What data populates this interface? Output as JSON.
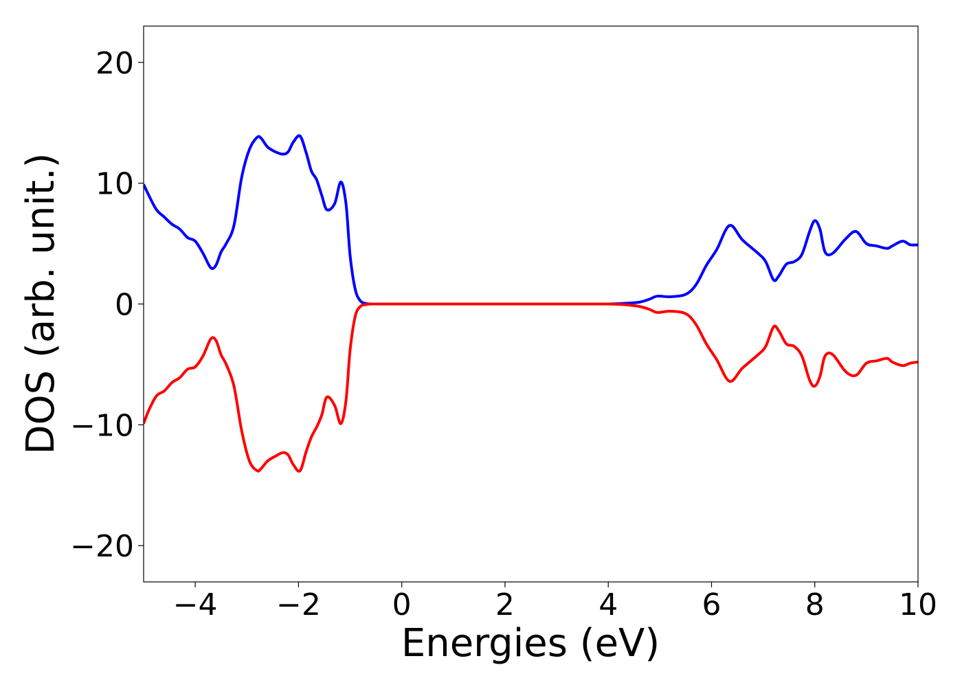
{
  "chart_data": {
    "type": "line",
    "title": "",
    "xlabel": "Energies (eV)",
    "ylabel": "DOS (arb. unit.)",
    "xlim": [
      -5,
      10
    ],
    "ylim": [
      -23,
      23
    ],
    "xticks": [
      -4,
      -2,
      0,
      2,
      4,
      6,
      8,
      10
    ],
    "yticks": [
      -20,
      -10,
      0,
      10,
      20
    ],
    "xtick_labels": [
      "−4",
      "−2",
      "0",
      "2",
      "4",
      "6",
      "8",
      "10"
    ],
    "ytick_labels": [
      "−20",
      "−10",
      "0",
      "10",
      "20"
    ],
    "grid": false,
    "legend": false,
    "series": [
      {
        "color": "#0000ff",
        "x": [
          -5.0,
          -4.9,
          -4.75,
          -4.6,
          -4.45,
          -4.3,
          -4.15,
          -4.0,
          -3.85,
          -3.7,
          -3.6,
          -3.5,
          -3.4,
          -3.25,
          -3.1,
          -2.95,
          -2.8,
          -2.72,
          -2.6,
          -2.45,
          -2.3,
          -2.2,
          -2.1,
          -1.97,
          -1.85,
          -1.75,
          -1.65,
          -1.55,
          -1.45,
          -1.3,
          -1.18,
          -1.08,
          -1.0,
          -0.9,
          -0.8,
          -0.7,
          -0.6,
          -0.5,
          0.0,
          2.0,
          3.5,
          4.0,
          4.3,
          4.6,
          4.8,
          4.95,
          5.2,
          5.5,
          5.7,
          5.9,
          6.1,
          6.35,
          6.6,
          6.9,
          7.05,
          7.2,
          7.3,
          7.45,
          7.6,
          7.75,
          7.9,
          8.0,
          8.1,
          8.2,
          8.35,
          8.6,
          8.8,
          9.0,
          9.2,
          9.4,
          9.5,
          9.7,
          9.85,
          10.0
        ],
        "y": [
          9.9,
          9.0,
          7.8,
          7.2,
          6.6,
          6.2,
          5.5,
          5.2,
          4.2,
          3.0,
          3.2,
          4.3,
          5.0,
          6.5,
          10.5,
          12.8,
          13.8,
          13.7,
          13.0,
          12.6,
          12.4,
          12.6,
          13.4,
          13.9,
          12.5,
          11.0,
          10.3,
          9.0,
          7.8,
          8.3,
          10.1,
          8.3,
          4.0,
          1.2,
          0.25,
          0.05,
          0.0,
          0.0,
          0.0,
          0.0,
          0.0,
          0.0,
          0.05,
          0.15,
          0.4,
          0.65,
          0.6,
          0.8,
          1.6,
          3.2,
          4.5,
          6.5,
          5.3,
          4.2,
          3.5,
          2.0,
          2.3,
          3.3,
          3.5,
          4.1,
          6.0,
          6.9,
          6.2,
          4.3,
          4.2,
          5.4,
          6.0,
          5.0,
          4.8,
          4.6,
          4.8,
          5.2,
          4.9,
          4.9
        ]
      },
      {
        "color": "#ff0000",
        "x": [
          -5.0,
          -4.9,
          -4.75,
          -4.6,
          -4.45,
          -4.3,
          -4.15,
          -4.0,
          -3.85,
          -3.7,
          -3.6,
          -3.5,
          -3.4,
          -3.25,
          -3.1,
          -2.95,
          -2.8,
          -2.72,
          -2.6,
          -2.45,
          -2.3,
          -2.2,
          -2.1,
          -1.97,
          -1.85,
          -1.75,
          -1.65,
          -1.55,
          -1.45,
          -1.3,
          -1.18,
          -1.08,
          -1.0,
          -0.9,
          -0.8,
          -0.7,
          -0.6,
          -0.5,
          0.0,
          2.0,
          3.5,
          4.0,
          4.3,
          4.6,
          4.8,
          4.95,
          5.2,
          5.5,
          5.7,
          5.9,
          6.1,
          6.35,
          6.6,
          6.9,
          7.05,
          7.2,
          7.3,
          7.45,
          7.6,
          7.75,
          7.9,
          8.0,
          8.1,
          8.2,
          8.35,
          8.6,
          8.8,
          9.0,
          9.2,
          9.4,
          9.5,
          9.7,
          9.85,
          10.0
        ],
        "y": [
          -9.9,
          -8.8,
          -7.6,
          -7.2,
          -6.5,
          -6.1,
          -5.4,
          -5.2,
          -4.3,
          -2.9,
          -3.0,
          -4.2,
          -5.0,
          -6.8,
          -10.5,
          -13.0,
          -13.8,
          -13.6,
          -13.0,
          -12.6,
          -12.3,
          -12.5,
          -13.3,
          -13.8,
          -12.2,
          -11.0,
          -10.2,
          -9.2,
          -7.7,
          -8.4,
          -9.9,
          -8.0,
          -3.8,
          -1.0,
          -0.2,
          -0.05,
          0.0,
          0.0,
          0.0,
          0.0,
          0.0,
          0.0,
          -0.05,
          -0.2,
          -0.45,
          -0.7,
          -0.6,
          -0.8,
          -1.7,
          -3.3,
          -4.6,
          -6.4,
          -5.3,
          -4.2,
          -3.5,
          -1.9,
          -2.2,
          -3.3,
          -3.5,
          -4.3,
          -6.3,
          -6.8,
          -6.0,
          -4.3,
          -4.2,
          -5.6,
          -5.9,
          -4.9,
          -4.7,
          -4.5,
          -4.8,
          -5.1,
          -4.9,
          -4.8
        ]
      }
    ]
  }
}
